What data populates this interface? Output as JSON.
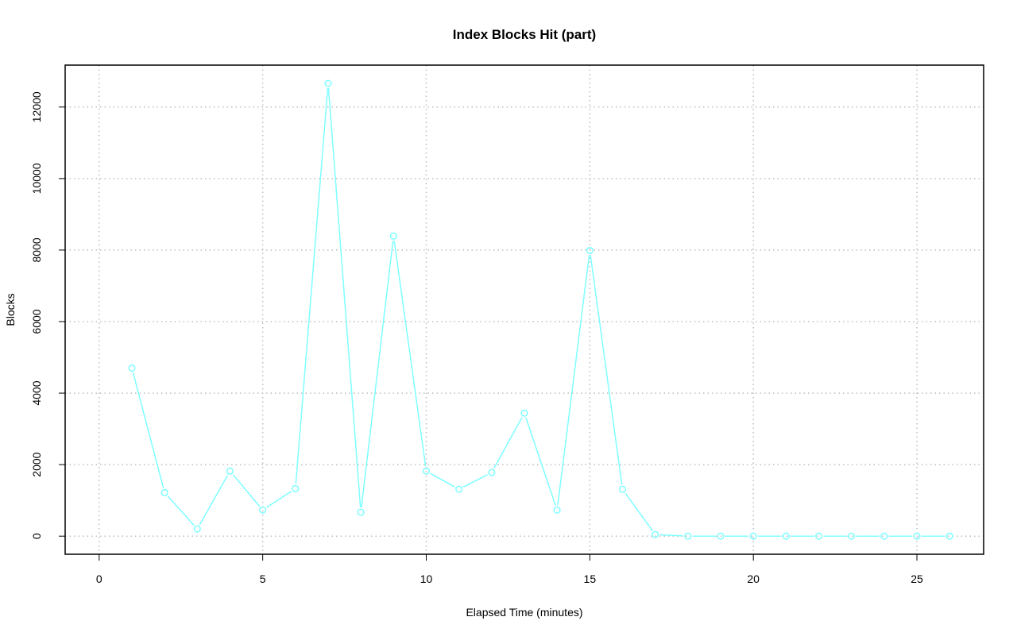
{
  "chart_data": {
    "type": "line",
    "title": "Index Blocks Hit (part)",
    "xlabel": "Elapsed Time (minutes)",
    "ylabel": "Blocks",
    "xlim": [
      -1.04,
      27.04
    ],
    "ylim": [
      -506,
      13172
    ],
    "x_ticks": [
      0,
      5,
      10,
      15,
      20,
      25
    ],
    "y_ticks": [
      0,
      2000,
      4000,
      6000,
      8000,
      10000,
      12000
    ],
    "grid": true,
    "markers": "open-circle",
    "series": [
      {
        "color": "#7fffff",
        "x": [
          1,
          2,
          3,
          4,
          5,
          6,
          7,
          8,
          9,
          10,
          11,
          12,
          13,
          14,
          15,
          16,
          17,
          18,
          19,
          20,
          21,
          22,
          23,
          24,
          25,
          26
        ],
        "y": [
          4700,
          1220,
          200,
          1820,
          730,
          1330,
          12660,
          670,
          8390,
          1820,
          1310,
          1780,
          3440,
          730,
          7990,
          1310,
          45,
          0,
          0,
          0,
          0,
          0,
          0,
          0,
          0,
          0
        ]
      }
    ]
  }
}
